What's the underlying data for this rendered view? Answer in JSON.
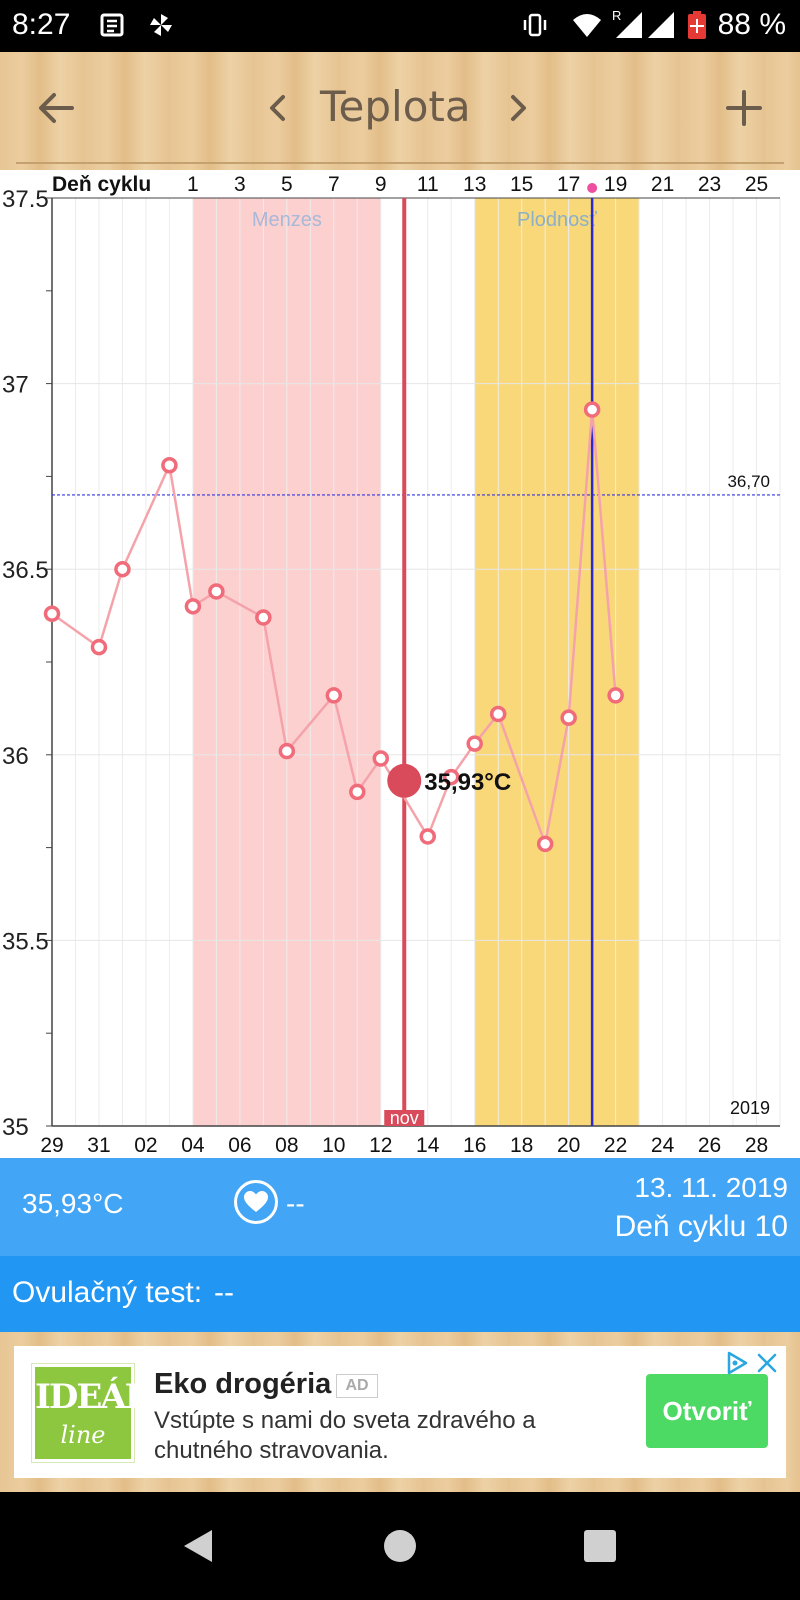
{
  "status_bar": {
    "time": "8:27",
    "battery": "88 %",
    "signal_label": "R",
    "icons": [
      "news-icon",
      "pinwheel-icon",
      "vibrate-icon",
      "wifi-icon",
      "signal-icon",
      "battery-icon"
    ]
  },
  "appbar": {
    "title": "Teplota",
    "icons": [
      "back-arrow-icon",
      "chevron-left-icon",
      "chevron-right-icon",
      "add-icon"
    ]
  },
  "chart_data": {
    "type": "line",
    "ylim": [
      35,
      37.5
    ],
    "y_ticks": [
      "35",
      "35.5",
      "36",
      "36.5",
      "37",
      "37.5"
    ],
    "x_label_top": "Deň cyklu",
    "cycle_day_ticks": [
      "1",
      "3",
      "5",
      "7",
      "9",
      "11",
      "13",
      "15",
      "17",
      "19",
      "21",
      "23",
      "25"
    ],
    "date_ticks": [
      "29",
      "31",
      "02",
      "04",
      "06",
      "08",
      "10",
      "12",
      "14",
      "16",
      "18",
      "20",
      "22",
      "24",
      "26",
      "28"
    ],
    "month_label": "nov",
    "year_label": "2019",
    "coverline": {
      "value": 36.7,
      "label": "36,70",
      "color": "#3333dd"
    },
    "zones": [
      {
        "label": "Menzes",
        "from_index": 6,
        "to_index": 14,
        "color": "#fdd0d0"
      },
      {
        "label": "Plodnosť",
        "from_index": 18,
        "to_index": 25,
        "color": "#f8d878"
      }
    ],
    "selected": {
      "index": 15,
      "value": 35.93,
      "label": "35,93°C",
      "color": "#d94a5a"
    },
    "ovulation_index": 23,
    "series": [
      {
        "color": "#f06c7a",
        "points": [
          {
            "i": 0,
            "v": 36.38
          },
          {
            "i": 2,
            "v": 36.29
          },
          {
            "i": 3,
            "v": 36.5
          },
          {
            "i": 5,
            "v": 36.78
          },
          {
            "i": 6,
            "v": 36.4
          },
          {
            "i": 7,
            "v": 36.44
          },
          {
            "i": 9,
            "v": 36.37
          },
          {
            "i": 10,
            "v": 36.01
          },
          {
            "i": 12,
            "v": 36.16
          },
          {
            "i": 13,
            "v": 35.9
          },
          {
            "i": 14,
            "v": 35.99
          },
          {
            "i": 16,
            "v": 35.78
          },
          {
            "i": 17,
            "v": 35.94
          },
          {
            "i": 18,
            "v": 36.03
          },
          {
            "i": 19,
            "v": 36.11
          },
          {
            "i": 21,
            "v": 35.76
          },
          {
            "i": 22,
            "v": 36.1
          },
          {
            "i": 23,
            "v": 36.93
          },
          {
            "i": 24,
            "v": 36.16
          }
        ]
      }
    ]
  },
  "info": {
    "temperature": "35,93°C",
    "heart_value": "--",
    "date": "13. 11. 2019",
    "cycle_day": "Deň cyklu 10"
  },
  "ovulation": {
    "label": "Ovulačný test:",
    "value": "--"
  },
  "ad": {
    "logo_line1": "IDEÁL",
    "logo_line2": "line",
    "title": "Eko drogéria",
    "badge": "AD",
    "text": "Vstúpte s nami do sveta zdravého a chutného stravovania.",
    "button": "Otvoriť"
  }
}
